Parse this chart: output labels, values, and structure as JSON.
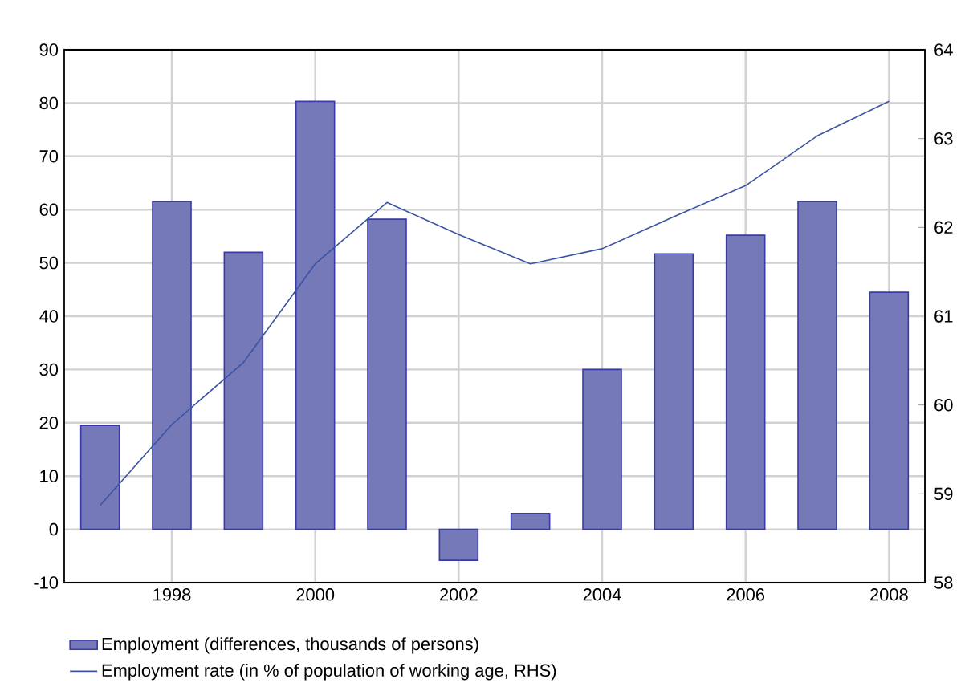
{
  "chart_data": {
    "type": "bar",
    "x": [
      1997,
      1998,
      1999,
      2000,
      2001,
      2002,
      2003,
      2004,
      2005,
      2006,
      2007,
      2008
    ],
    "series": [
      {
        "name": "Employment (differences, thousands of persons)",
        "color": "#7579b8",
        "values": [
          19.5,
          61.5,
          52,
          80.3,
          58.2,
          -5.8,
          3,
          30,
          51.7,
          55.2,
          61.5,
          44.5
        ]
      },
      {
        "name": "Employment rate (in % of population of working age, RHS)",
        "type": "line",
        "axis": "y2",
        "color": "#3a53a4",
        "values": [
          58.87,
          59.78,
          60.48,
          61.59,
          62.28,
          61.92,
          61.59,
          61.76,
          62.12,
          62.47,
          63.03,
          63.42
        ]
      }
    ],
    "xlim": [
      1996.5,
      2008.5
    ],
    "xticks": [
      1998,
      2000,
      2002,
      2004,
      2006,
      2008
    ],
    "ylim": [
      -10,
      90
    ],
    "yticks": [
      -10,
      0,
      10,
      20,
      30,
      40,
      50,
      60,
      70,
      80,
      90
    ],
    "y2lim": [
      58,
      64
    ],
    "y2ticks": [
      58,
      59,
      60,
      61,
      62,
      63,
      64
    ],
    "grid": true,
    "legend": "bottom left",
    "marker": "none",
    "line_style": "solid"
  }
}
